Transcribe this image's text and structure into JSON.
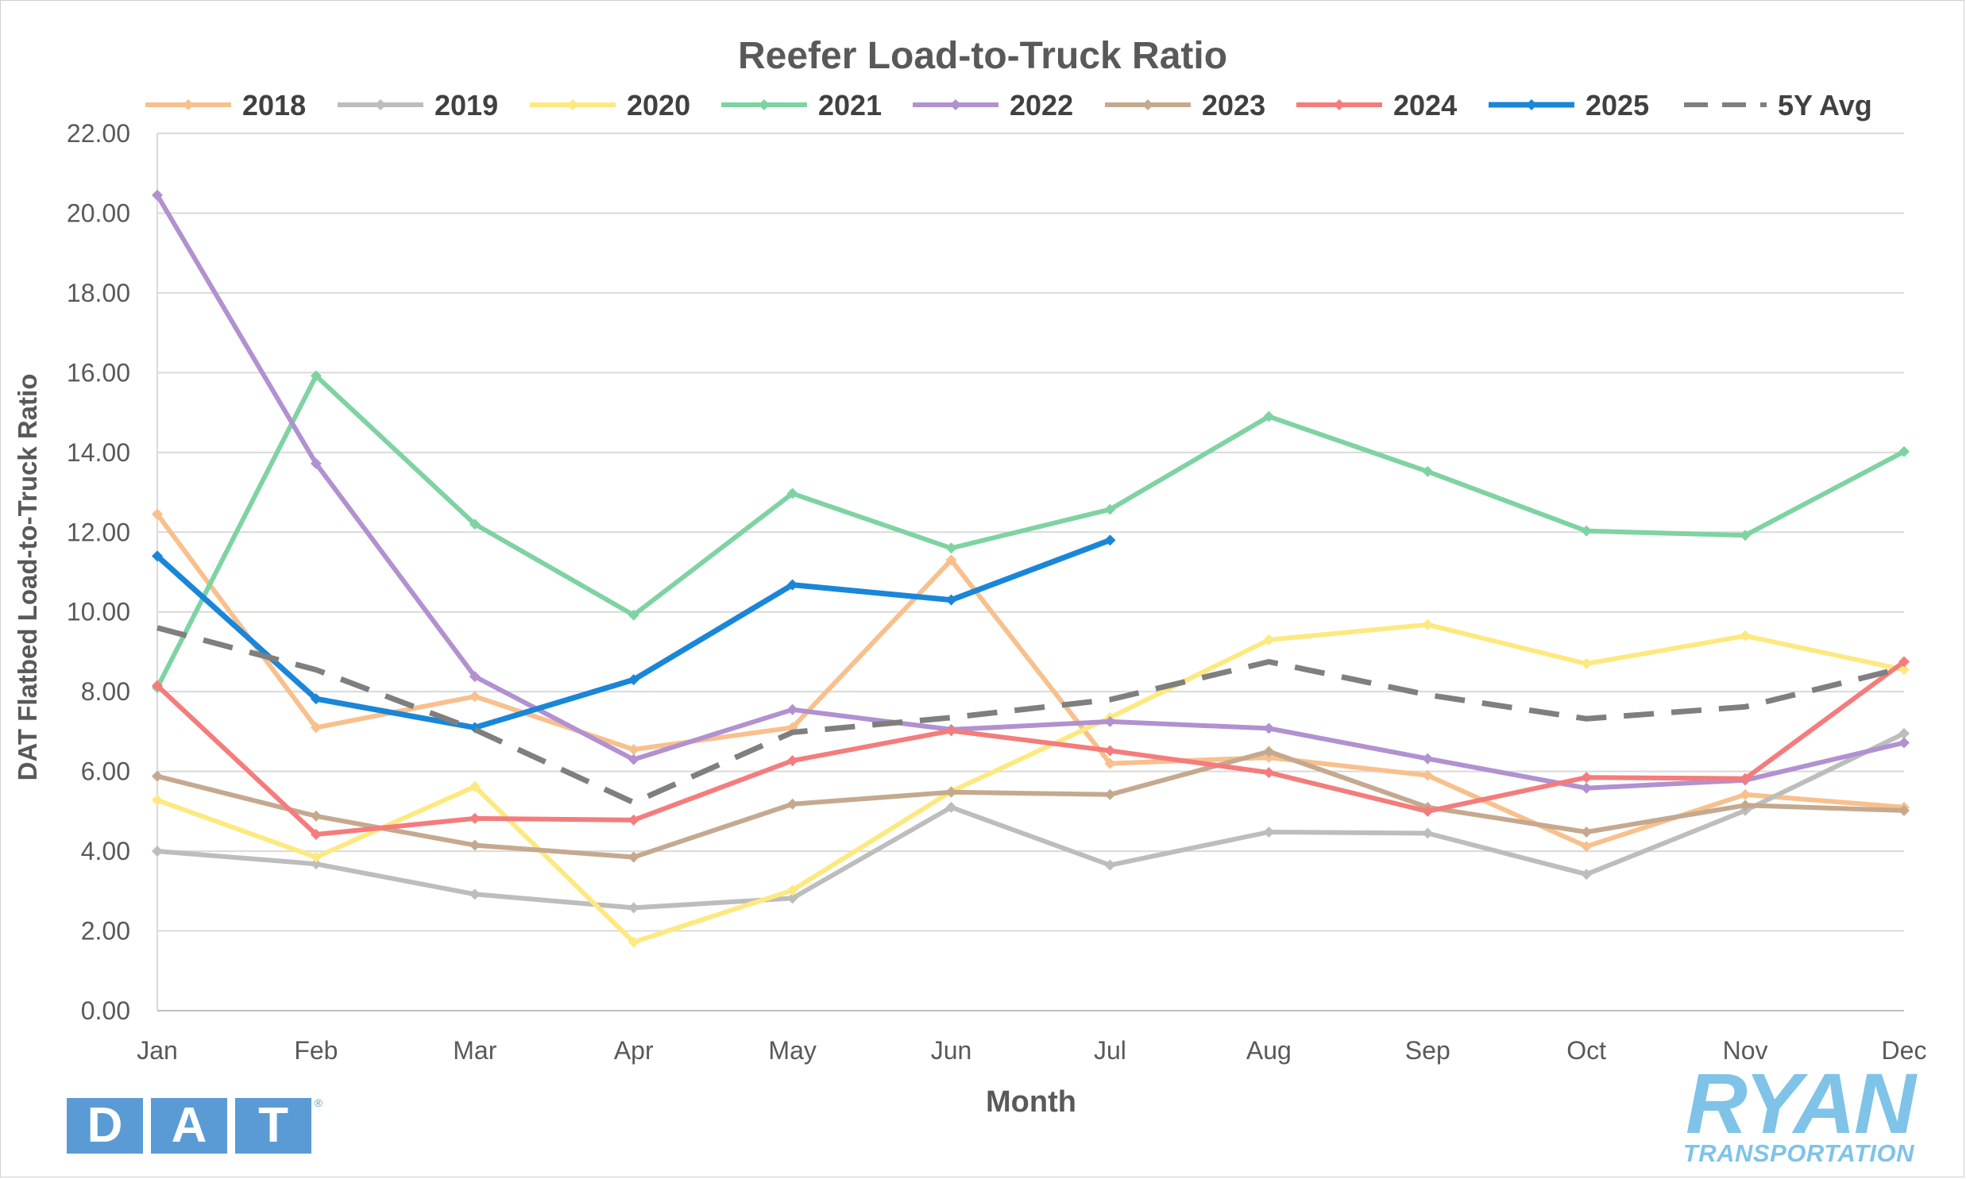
{
  "chart_data": {
    "type": "line",
    "title": "Reefer Load-to-Truck Ratio",
    "xlabel": "Month",
    "ylabel": "DAT Flatbed Load-to-Truck Ratio",
    "categories": [
      "Jan",
      "Feb",
      "Mar",
      "Apr",
      "May",
      "Jun",
      "Jul",
      "Aug",
      "Sep",
      "Oct",
      "Nov",
      "Dec"
    ],
    "ylim": [
      0,
      22
    ],
    "yticks": [
      "0.00",
      "2.00",
      "4.00",
      "6.00",
      "8.00",
      "10.00",
      "12.00",
      "14.00",
      "16.00",
      "18.00",
      "20.00",
      "22.00"
    ],
    "grid": true,
    "legend": "top",
    "series": [
      {
        "name": "2018",
        "color": "#f8c08d",
        "values": [
          12.45,
          7.1,
          7.88,
          6.55,
          7.1,
          11.3,
          6.2,
          6.35,
          5.9,
          4.12,
          5.42,
          5.1
        ]
      },
      {
        "name": "2019",
        "color": "#bdbdbd",
        "values": [
          4.0,
          3.68,
          2.92,
          2.58,
          2.82,
          5.1,
          3.65,
          4.48,
          4.45,
          3.42,
          5.02,
          6.95
        ]
      },
      {
        "name": "2020",
        "color": "#fde980",
        "values": [
          5.28,
          3.85,
          5.62,
          1.72,
          3.02,
          5.5,
          7.35,
          9.3,
          9.68,
          8.7,
          9.4,
          8.55
        ]
      },
      {
        "name": "2021",
        "color": "#7fd3a2",
        "values": [
          8.1,
          15.92,
          12.2,
          9.92,
          12.97,
          11.6,
          12.57,
          14.9,
          13.52,
          12.03,
          11.92,
          14.02
        ]
      },
      {
        "name": "2022",
        "color": "#b191d0",
        "values": [
          20.45,
          13.72,
          8.38,
          6.3,
          7.55,
          7.05,
          7.25,
          7.08,
          6.32,
          5.58,
          5.78,
          6.72
        ]
      },
      {
        "name": "2023",
        "color": "#c5a98f",
        "values": [
          5.88,
          4.88,
          4.15,
          3.85,
          5.18,
          5.48,
          5.42,
          6.5,
          5.1,
          4.48,
          5.15,
          5.02
        ]
      },
      {
        "name": "2024",
        "color": "#f47c7c",
        "values": [
          8.15,
          4.42,
          4.82,
          4.78,
          6.27,
          7.02,
          6.52,
          5.97,
          5.0,
          5.85,
          5.82,
          8.75
        ]
      },
      {
        "name": "2025",
        "color": "#1a86d8",
        "values": [
          11.4,
          7.82,
          7.1,
          8.3,
          10.68,
          10.3,
          11.8,
          null,
          null,
          null,
          null,
          null
        ]
      },
      {
        "name": "5Y Avg",
        "color": "#7f7f7f",
        "dashed": true,
        "values": [
          9.6,
          8.55,
          7.05,
          5.22,
          6.98,
          7.35,
          7.8,
          8.75,
          7.92,
          7.32,
          7.62,
          8.6
        ]
      }
    ]
  },
  "logos": {
    "dat": [
      "D",
      "A",
      "T"
    ],
    "dat_mark": "®",
    "ryan": "RYAN",
    "ryan_sub": "TRANSPORTATION"
  }
}
